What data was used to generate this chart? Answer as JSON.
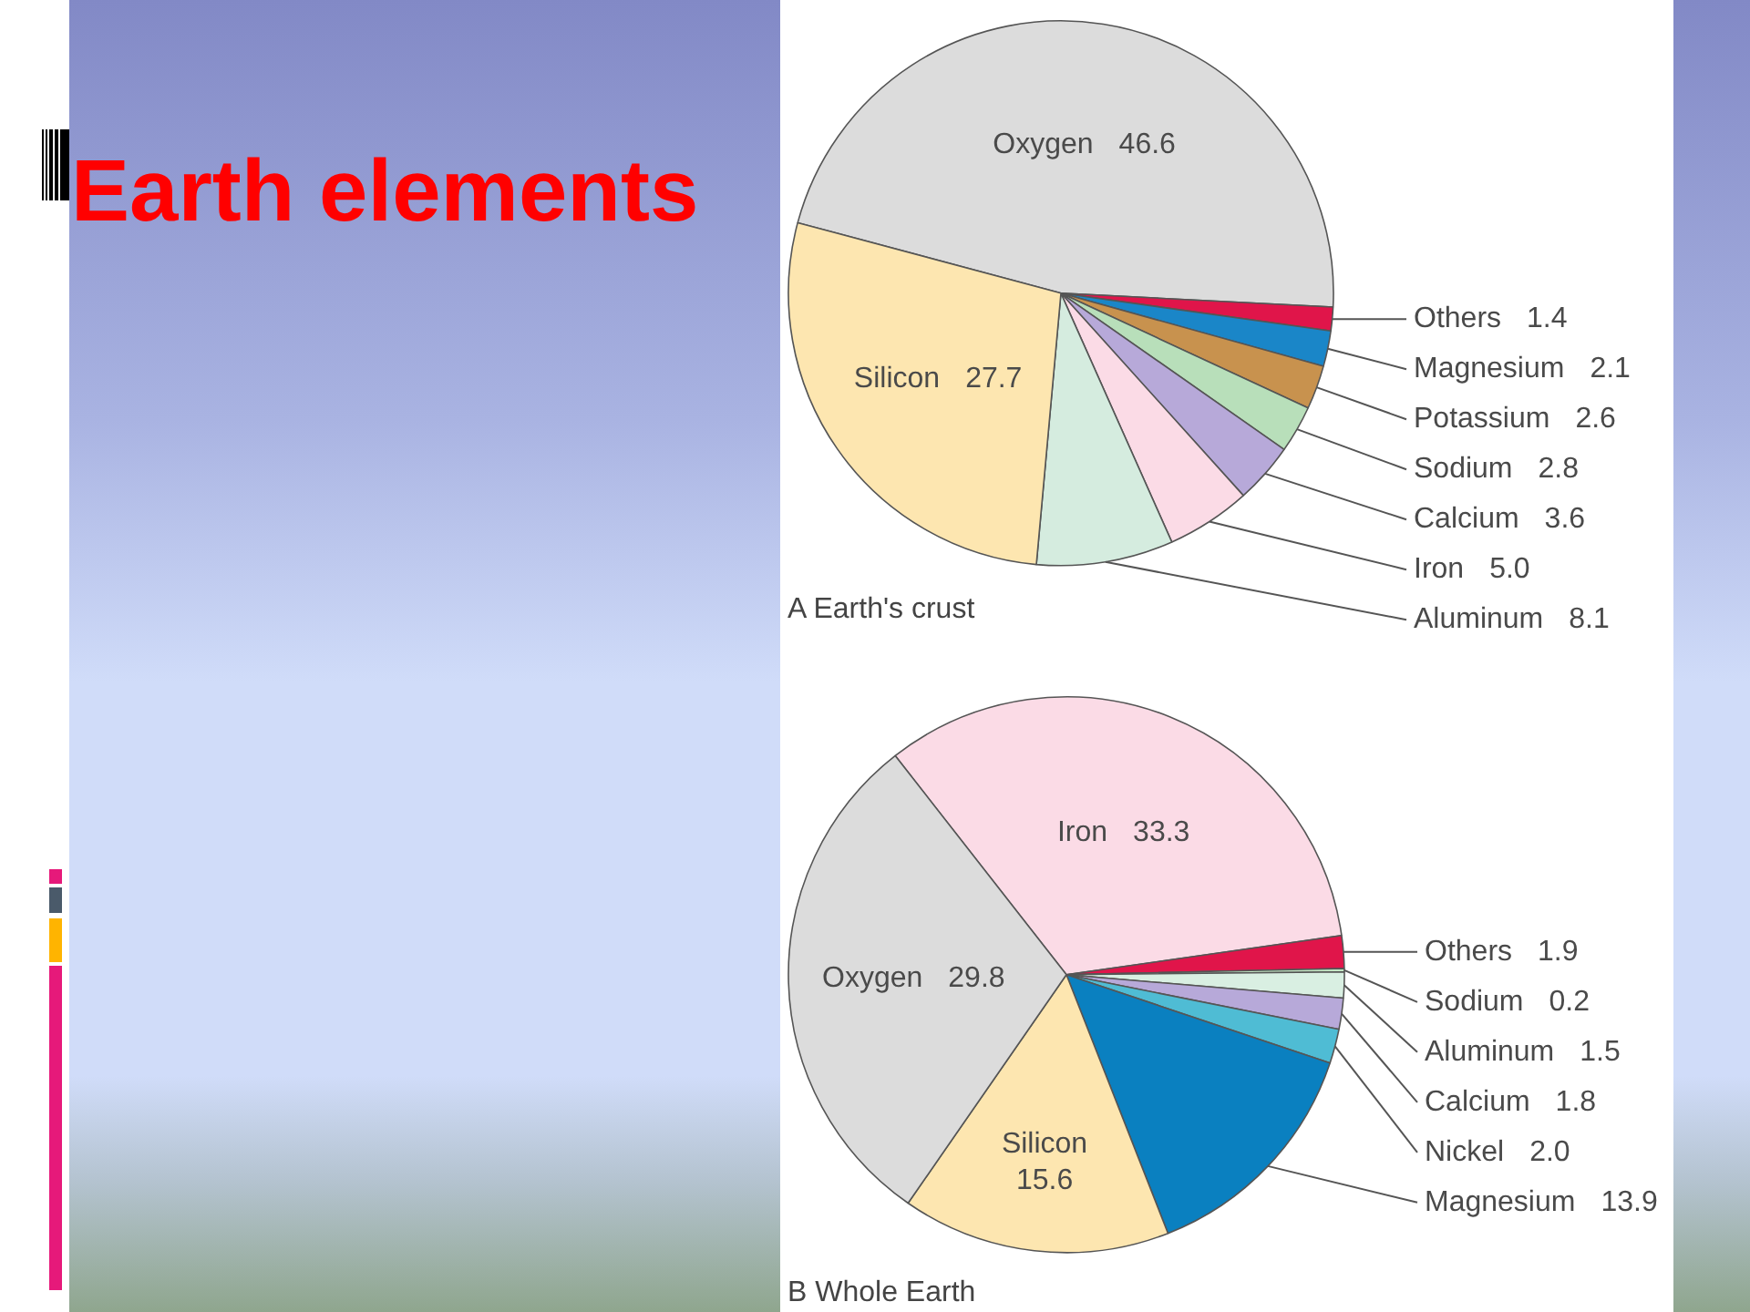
{
  "chart_data": [
    {
      "type": "other",
      "title": "Earth elements"
    },
    {
      "type": "pie",
      "title": "A Earth's crust",
      "categories": [
        "Oxygen",
        "Others",
        "Magnesium",
        "Potassium",
        "Sodium",
        "Calcium",
        "Iron",
        "Aluminum",
        "Silicon"
      ],
      "values": [
        46.6,
        1.4,
        2.1,
        2.6,
        2.8,
        3.6,
        5.0,
        8.1,
        27.7
      ],
      "value_labels": [
        "46.6",
        "1.4",
        "2.1",
        "2.6",
        "2.8",
        "3.6",
        "5.0",
        "8.1",
        "27.7"
      ],
      "colors": [
        "#dcdcdc",
        "#e0154a",
        "#1a86c8",
        "#c8924e",
        "#b8dfba",
        "#b7a9d9",
        "#fbdbe6",
        "#d5ecdf",
        "#fde6b0"
      ]
    },
    {
      "type": "pie",
      "title": "B Whole Earth",
      "categories": [
        "Iron",
        "Others",
        "Sodium",
        "Aluminum",
        "Calcium",
        "Nickel",
        "Magnesium",
        "Silicon",
        "Oxygen"
      ],
      "values": [
        33.3,
        1.9,
        0.2,
        1.5,
        1.8,
        2.0,
        13.9,
        15.6,
        29.8
      ],
      "value_labels": [
        "33.3",
        "1.9",
        "0.2",
        "1.5",
        "1.8",
        "2.0",
        "13.9",
        "15.6",
        "29.8"
      ],
      "colors": [
        "#fbdbe6",
        "#e0154a",
        "#c4e6c4",
        "#d9efe2",
        "#b7a9d9",
        "#4fbcd4",
        "#0a80c0",
        "#fde6b0",
        "#dcdcdc"
      ]
    }
  ]
}
